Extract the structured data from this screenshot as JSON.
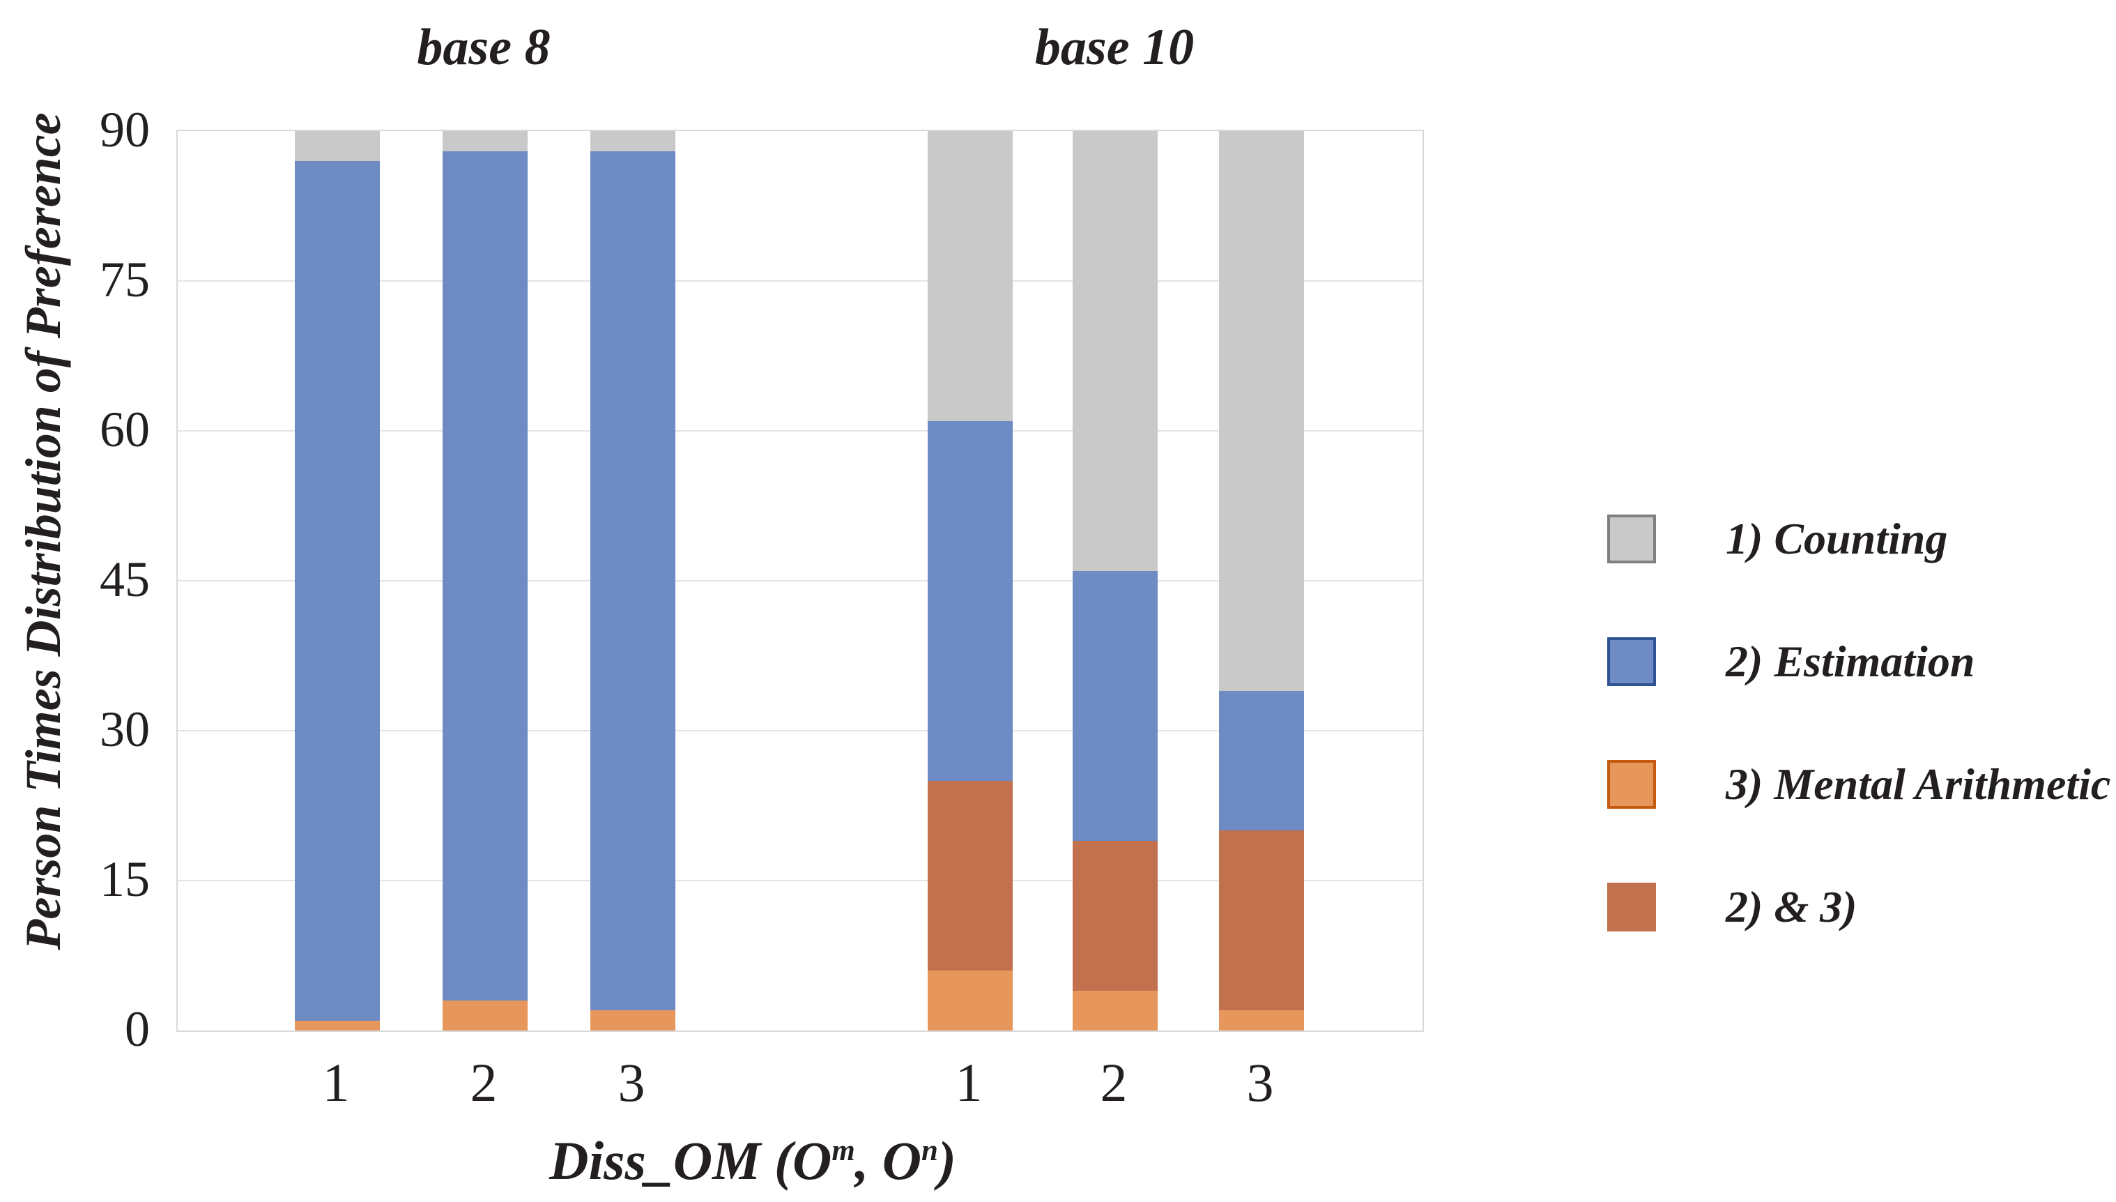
{
  "chart_data": {
    "type": "bar",
    "stacked": true,
    "title_left": "base 8",
    "title_right": "base 10",
    "ylabel": "Person Times Distribution of Preference",
    "xlabel": "Diss_OM (O^m, O^n)",
    "xlabel_parts": [
      "Diss_OM (O",
      "m",
      ", O",
      "n",
      ")"
    ],
    "ylim": [
      0,
      90
    ],
    "yticks": [
      0,
      15,
      30,
      45,
      60,
      75,
      90
    ],
    "grid": true,
    "legend_position": "right",
    "groups": [
      {
        "title": "base 8",
        "categories": [
          "1",
          "2",
          "3"
        ]
      },
      {
        "title": "base 10",
        "categories": [
          "1",
          "2",
          "3"
        ]
      }
    ],
    "categories": [
      "1",
      "2",
      "3",
      "1",
      "2",
      "3"
    ],
    "series": [
      {
        "name": "3) Mental Arithmetic",
        "color": "#E8975C",
        "values": [
          1,
          3,
          2,
          6,
          4,
          2
        ]
      },
      {
        "name": "2) & 3)",
        "color": "#C1714E",
        "values": [
          0,
          0,
          0,
          19,
          15,
          18
        ]
      },
      {
        "name": "2) Estimation",
        "color": "#6E8BC4",
        "values": [
          86,
          85,
          86,
          36,
          27,
          14
        ]
      },
      {
        "name": "1) Counting",
        "color": "#C9C9C9",
        "values": [
          3,
          2,
          2,
          29,
          44,
          56
        ]
      }
    ],
    "legend": [
      {
        "label": "1) Counting",
        "color": "#C9C9C9",
        "border": "#7F7F7F"
      },
      {
        "label": "2) Estimation",
        "color": "#6E8BC4",
        "border": "#2E5395"
      },
      {
        "label": "3) Mental Arithmetic",
        "color": "#E8975C",
        "border": "#C55A11"
      },
      {
        "label": "2) & 3)",
        "color": "#C1714E",
        "border": "#C1714E"
      }
    ]
  }
}
